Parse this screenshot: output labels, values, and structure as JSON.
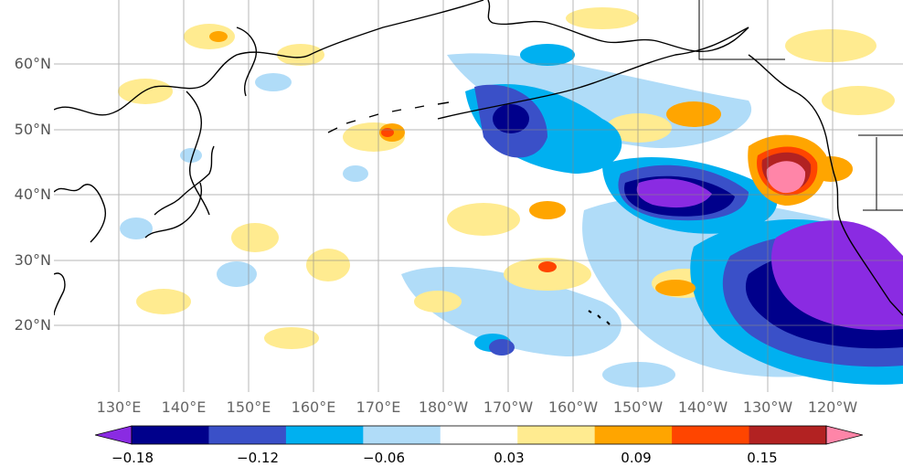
{
  "map": {
    "lat_labels": [
      "60°N",
      "50°N",
      "40°N",
      "30°N",
      "20°N"
    ],
    "lon_labels": [
      "130°E",
      "140°E",
      "150°E",
      "160°E",
      "170°E",
      "180°W",
      "170°W",
      "160°W",
      "150°W",
      "140°W",
      "130°W",
      "120°W"
    ]
  },
  "colorbar": {
    "colors": [
      "#8a2be2",
      "#00008b",
      "#3a50c8",
      "#00b0f0",
      "#b0dcf8",
      "#ffffff",
      "#ffeb90",
      "#ffa500",
      "#ff4500",
      "#b22222",
      "#ff85a8"
    ],
    "tick_labels": [
      "−0.18",
      "−0.12",
      "−0.06",
      "0.03",
      "0.09",
      "0.15"
    ]
  }
}
